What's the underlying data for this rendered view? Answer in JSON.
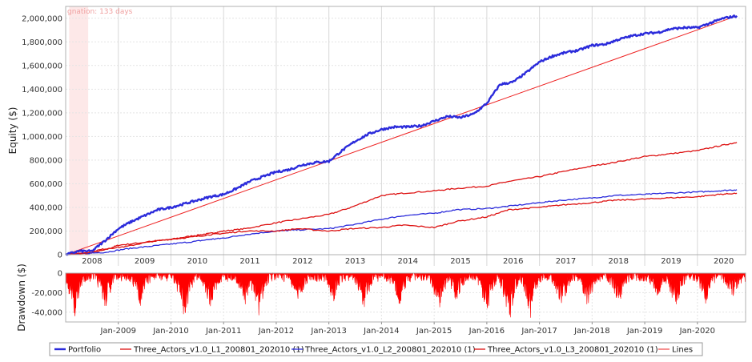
{
  "chart_data": [
    {
      "type": "line",
      "ylabel": "Equity ($)",
      "ylim": [
        0,
        2100000
      ],
      "xlim": [
        "2008-01-01",
        "2020-10-31"
      ],
      "y_ticks": [
        "0",
        "200,000",
        "400,000",
        "600,000",
        "800,000",
        "1,000,000",
        "1,200,000",
        "1,400,000",
        "1,600,000",
        "1,800,000",
        "2,000,000"
      ],
      "year_labels": [
        "2008",
        "2009",
        "2010",
        "2011",
        "2012",
        "2013",
        "2014",
        "2015",
        "2016",
        "2017",
        "2018",
        "2019",
        "2020"
      ],
      "grid": true,
      "stagnation": {
        "label": "gnation: 133 days",
        "start": "2008-01-25",
        "end": "2008-06-05"
      },
      "series": [
        {
          "name": "Portfolio",
          "color": "#2b2bdb",
          "points": [
            [
              "2008-01",
              0
            ],
            [
              "2008-04",
              30000
            ],
            [
              "2008-07",
              30000
            ],
            [
              "2008-10",
              120000
            ],
            [
              "2009-01",
              220000
            ],
            [
              "2009-04",
              280000
            ],
            [
              "2009-07",
              330000
            ],
            [
              "2009-10",
              380000
            ],
            [
              "2010-01",
              400000
            ],
            [
              "2010-04",
              430000
            ],
            [
              "2010-07",
              460000
            ],
            [
              "2010-10",
              490000
            ],
            [
              "2011-01",
              510000
            ],
            [
              "2011-04",
              560000
            ],
            [
              "2011-07",
              620000
            ],
            [
              "2011-10",
              660000
            ],
            [
              "2012-01",
              700000
            ],
            [
              "2012-04",
              720000
            ],
            [
              "2012-07",
              760000
            ],
            [
              "2012-10",
              780000
            ],
            [
              "2013-01",
              790000
            ],
            [
              "2013-04",
              880000
            ],
            [
              "2013-07",
              960000
            ],
            [
              "2013-10",
              1020000
            ],
            [
              "2014-01",
              1060000
            ],
            [
              "2014-04",
              1080000
            ],
            [
              "2014-07",
              1080000
            ],
            [
              "2014-10",
              1090000
            ],
            [
              "2015-01",
              1130000
            ],
            [
              "2015-04",
              1170000
            ],
            [
              "2015-07",
              1160000
            ],
            [
              "2015-10",
              1190000
            ],
            [
              "2016-01",
              1280000
            ],
            [
              "2016-04",
              1440000
            ],
            [
              "2016-07",
              1460000
            ],
            [
              "2016-10",
              1540000
            ],
            [
              "2017-01",
              1630000
            ],
            [
              "2017-04",
              1680000
            ],
            [
              "2017-07",
              1710000
            ],
            [
              "2017-10",
              1730000
            ],
            [
              "2018-01",
              1770000
            ],
            [
              "2018-04",
              1780000
            ],
            [
              "2018-07",
              1820000
            ],
            [
              "2018-10",
              1850000
            ],
            [
              "2019-01",
              1870000
            ],
            [
              "2019-04",
              1880000
            ],
            [
              "2019-07",
              1910000
            ],
            [
              "2019-10",
              1920000
            ],
            [
              "2020-01",
              1920000
            ],
            [
              "2020-04",
              1960000
            ],
            [
              "2020-07",
              2000000
            ],
            [
              "2020-10",
              2020000
            ]
          ]
        },
        {
          "name": "Three_Actors_v1.0_L1_200801_202010 (1)",
          "color": "#dd1111",
          "points": [
            [
              "2008-01",
              0
            ],
            [
              "2008-06",
              10000
            ],
            [
              "2008-10",
              40000
            ],
            [
              "2009-01",
              80000
            ],
            [
              "2009-06",
              100000
            ],
            [
              "2010-01",
              130000
            ],
            [
              "2010-06",
              160000
            ],
            [
              "2010-10",
              180000
            ],
            [
              "2011-01",
              200000
            ],
            [
              "2011-06",
              220000
            ],
            [
              "2012-01",
              270000
            ],
            [
              "2012-06",
              300000
            ],
            [
              "2013-01",
              340000
            ],
            [
              "2013-06",
              400000
            ],
            [
              "2014-01",
              500000
            ],
            [
              "2014-06",
              520000
            ],
            [
              "2015-01",
              540000
            ],
            [
              "2015-06",
              560000
            ],
            [
              "2016-01",
              580000
            ],
            [
              "2016-06",
              620000
            ],
            [
              "2017-01",
              660000
            ],
            [
              "2017-06",
              700000
            ],
            [
              "2018-01",
              750000
            ],
            [
              "2018-06",
              780000
            ],
            [
              "2019-01",
              830000
            ],
            [
              "2019-06",
              850000
            ],
            [
              "2020-01",
              880000
            ],
            [
              "2020-06",
              920000
            ],
            [
              "2020-10",
              950000
            ]
          ]
        },
        {
          "name": "Three_Actors_v1.0_L2_200801_202010 (1)",
          "color": "#2b2bdb",
          "points": [
            [
              "2008-01",
              0
            ],
            [
              "2008-05",
              10000
            ],
            [
              "2008-10",
              20000
            ],
            [
              "2009-03",
              50000
            ],
            [
              "2009-08",
              70000
            ],
            [
              "2010-01",
              90000
            ],
            [
              "2010-06",
              110000
            ],
            [
              "2010-10",
              130000
            ],
            [
              "2011-01",
              140000
            ],
            [
              "2011-06",
              170000
            ],
            [
              "2012-01",
              200000
            ],
            [
              "2012-06",
              210000
            ],
            [
              "2013-01",
              220000
            ],
            [
              "2013-06",
              250000
            ],
            [
              "2014-01",
              300000
            ],
            [
              "2014-06",
              330000
            ],
            [
              "2015-01",
              350000
            ],
            [
              "2015-06",
              380000
            ],
            [
              "2016-01",
              390000
            ],
            [
              "2016-06",
              410000
            ],
            [
              "2017-01",
              440000
            ],
            [
              "2017-06",
              460000
            ],
            [
              "2018-01",
              480000
            ],
            [
              "2018-06",
              500000
            ],
            [
              "2019-01",
              510000
            ],
            [
              "2019-06",
              520000
            ],
            [
              "2020-01",
              530000
            ],
            [
              "2020-06",
              540000
            ],
            [
              "2020-10",
              550000
            ]
          ]
        },
        {
          "name": "Three_Actors_v1.0_L3_200801_202010 (1)",
          "color": "#dd1111",
          "points": [
            [
              "2008-01",
              0
            ],
            [
              "2008-06",
              20000
            ],
            [
              "2008-10",
              50000
            ],
            [
              "2009-03",
              70000
            ],
            [
              "2009-08",
              110000
            ],
            [
              "2010-01",
              130000
            ],
            [
              "2010-06",
              150000
            ],
            [
              "2010-10",
              170000
            ],
            [
              "2011-01",
              180000
            ],
            [
              "2011-06",
              200000
            ],
            [
              "2012-01",
              200000
            ],
            [
              "2012-06",
              220000
            ],
            [
              "2013-01",
              200000
            ],
            [
              "2013-06",
              220000
            ],
            [
              "2014-01",
              230000
            ],
            [
              "2014-06",
              250000
            ],
            [
              "2015-01",
              230000
            ],
            [
              "2015-06",
              280000
            ],
            [
              "2016-01",
              320000
            ],
            [
              "2016-06",
              380000
            ],
            [
              "2017-01",
              400000
            ],
            [
              "2017-06",
              420000
            ],
            [
              "2018-01",
              440000
            ],
            [
              "2018-06",
              460000
            ],
            [
              "2019-01",
              470000
            ],
            [
              "2019-06",
              480000
            ],
            [
              "2020-01",
              490000
            ],
            [
              "2020-06",
              510000
            ],
            [
              "2020-10",
              520000
            ]
          ]
        },
        {
          "name": "Lines",
          "color": "#ee2222",
          "points": [
            [
              "2008-01",
              0
            ],
            [
              "2020-10",
              2020000
            ]
          ]
        }
      ]
    },
    {
      "type": "area",
      "ylabel": "Drawdown ($)",
      "ylim": [
        -50000,
        0
      ],
      "y_ticks": [
        "0",
        "-20,000",
        "-40,000"
      ],
      "x_ticks": [
        "Jan-2009",
        "Jan-2010",
        "Jan-2011",
        "Jan-2012",
        "Jan-2013",
        "Jan-2014",
        "Jan-2015",
        "Jan-2016",
        "Jan-2017",
        "Jan-2018",
        "Jan-2019",
        "Jan-2020"
      ],
      "color": "#ff0000",
      "troughs": [
        [
          "2008-03",
          -40000
        ],
        [
          "2008-10",
          -30000
        ],
        [
          "2009-06",
          -25000
        ],
        [
          "2010-04",
          -44000
        ],
        [
          "2010-10",
          -28000
        ],
        [
          "2011-06",
          -26000
        ],
        [
          "2011-09",
          -38000
        ],
        [
          "2012-06",
          -24000
        ],
        [
          "2013-02",
          -22000
        ],
        [
          "2013-09",
          -28000
        ],
        [
          "2014-05",
          -26000
        ],
        [
          "2015-02",
          -32000
        ],
        [
          "2015-06",
          -24000
        ],
        [
          "2016-01",
          -37000
        ],
        [
          "2016-06",
          -49000
        ],
        [
          "2016-11",
          -38000
        ],
        [
          "2017-06",
          -30000
        ],
        [
          "2017-12",
          -26000
        ],
        [
          "2018-07",
          -26000
        ],
        [
          "2019-04",
          -22000
        ],
        [
          "2019-08",
          -30000
        ],
        [
          "2020-03",
          -24000
        ],
        [
          "2020-09",
          -16000
        ]
      ]
    }
  ],
  "legend": [
    "Portfolio",
    "Three_Actors_v1.0_L1_200801_202010 (1)",
    "Three_Actors_v1.0_L2_200801_202010 (1)",
    "Three_Actors_v1.0_L3_200801_202010 (1)",
    "Lines"
  ]
}
